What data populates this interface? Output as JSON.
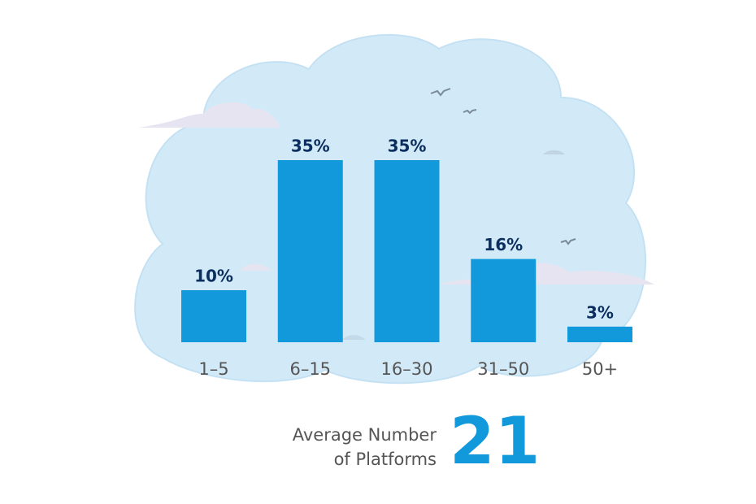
{
  "chart_data": {
    "type": "bar",
    "categories": [
      "1–5",
      "6–15",
      "16–30",
      "31–50",
      "50+"
    ],
    "values": [
      10,
      35,
      35,
      16,
      3
    ],
    "value_labels": [
      "10%",
      "35%",
      "35%",
      "16%",
      "3%"
    ],
    "color": "#1199db",
    "annotation": {
      "label": [
        "Average Number",
        "of Platforms"
      ],
      "value": 21
    }
  }
}
